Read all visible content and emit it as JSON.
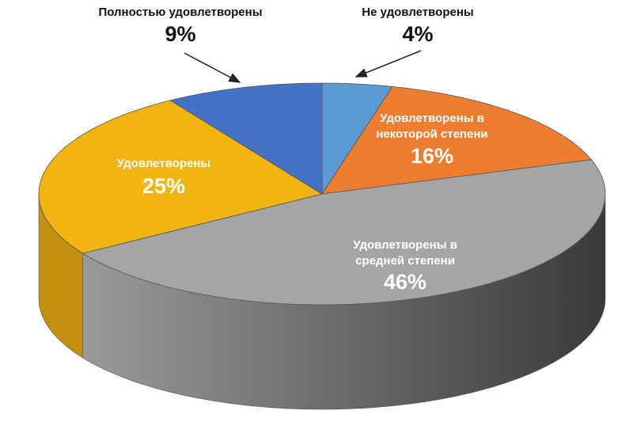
{
  "chart_data": {
    "type": "pie",
    "categories": [
      "Не удовлетворены",
      "Удовлетворены в некоторой степени",
      "Удовлетворены в средней степени",
      "Удовлетворены",
      "Полностью удовлетворены"
    ],
    "values": [
      4,
      16,
      46,
      25,
      9
    ],
    "value_labels": [
      "4%",
      "16%",
      "46%",
      "25%",
      "9%"
    ],
    "colors": [
      "#5b9bd5",
      "#ed7d31",
      "#a5a5a5",
      "#f2b411",
      "#4472c4"
    ]
  }
}
